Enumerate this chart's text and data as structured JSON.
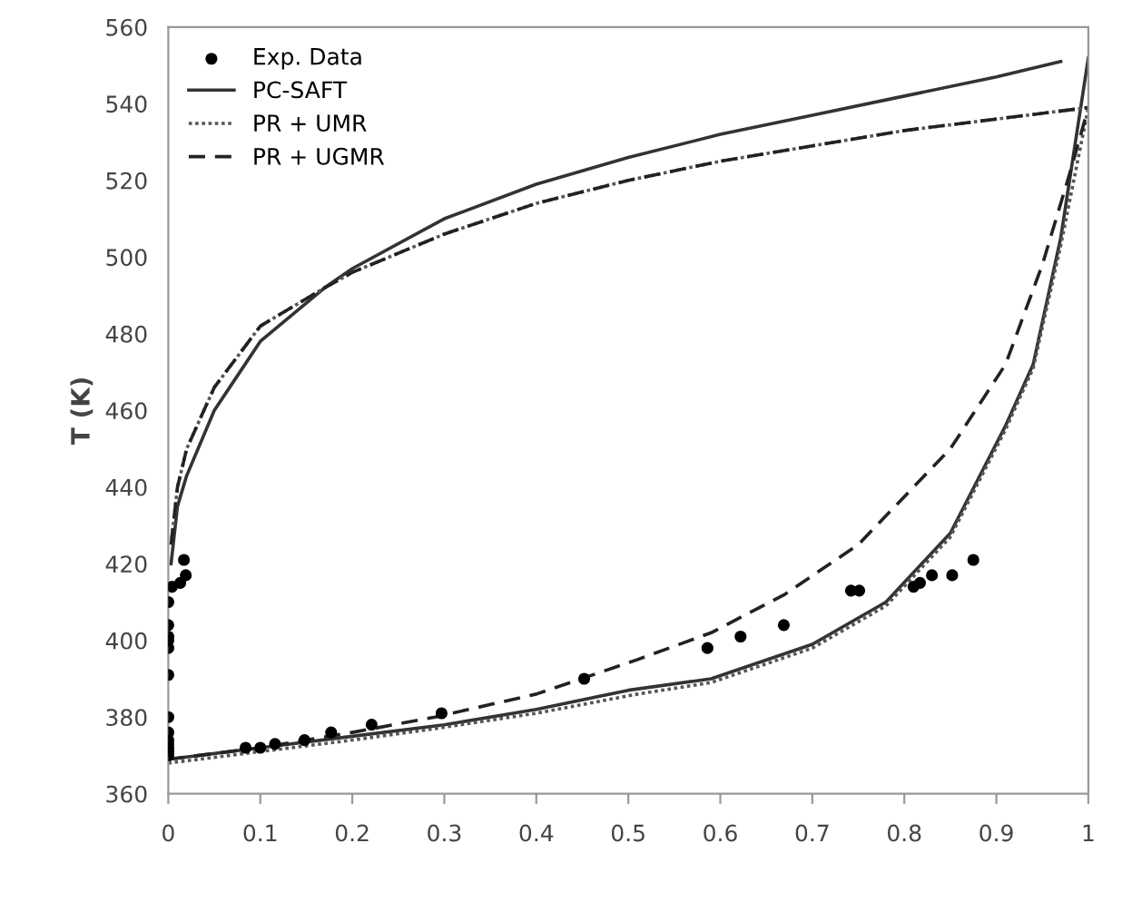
{
  "chart_data": {
    "type": "line",
    "ylabel": "T (K)",
    "xlim": [
      0,
      1
    ],
    "ylim": [
      360,
      560
    ],
    "xticks": [
      0,
      0.1,
      0.2,
      0.3,
      0.4,
      0.5,
      0.6,
      0.7,
      0.8,
      0.9,
      1
    ],
    "yticks": [
      360,
      380,
      400,
      420,
      440,
      460,
      480,
      500,
      520,
      540,
      560
    ],
    "grid": false,
    "legend": "top left",
    "series": [
      {
        "name": "Exp. Data",
        "type": "scatter",
        "marker": "circle",
        "color": "#000000",
        "x": [
          0,
          0,
          0,
          0,
          0,
          0,
          0,
          0,
          0,
          0,
          0,
          0,
          0,
          0.004,
          0.013,
          0.019,
          0.017,
          0.084,
          0.1,
          0.116,
          0.148,
          0.177,
          0.221,
          0.297,
          0.452,
          0.586,
          0.622,
          0.669,
          0.742,
          0.751,
          0.81,
          0.817,
          0.83,
          0.852,
          0.875
        ],
        "values": [
          370,
          371,
          372,
          373,
          374,
          376,
          380,
          391,
          398,
          400,
          401,
          404,
          410,
          414,
          415,
          417,
          421,
          372,
          372,
          373,
          374,
          376,
          378,
          381,
          390,
          398,
          401,
          404,
          413,
          413,
          414,
          415,
          417,
          417,
          421
        ]
      },
      {
        "name": "PC-SAFT",
        "line_style": "solid",
        "color": "#333333",
        "x": [
          0.003,
          0.01,
          0.02,
          0.05,
          0.1,
          0.17,
          0.2,
          0.3,
          0.4,
          0.5,
          0.6,
          0.7,
          0.8,
          0.9,
          0.97,
          null,
          0,
          0.1,
          0.2,
          0.3,
          0.4,
          0.5,
          0.59,
          0.7,
          0.78,
          0.85,
          0.91,
          0.94,
          0.97,
          1
        ],
        "values": [
          420,
          435,
          443,
          460,
          478,
          492,
          497,
          510,
          519,
          526,
          532,
          537,
          542,
          547,
          551,
          null,
          369,
          372,
          375,
          378,
          382,
          387,
          390,
          399,
          410,
          428,
          456,
          472,
          505,
          552
        ]
      },
      {
        "name": "PR + UMR",
        "line_style": "dotted",
        "color": "#555555",
        "x": [
          0.003,
          0.01,
          0.02,
          0.05,
          0.1,
          0.17,
          0.2,
          0.3,
          0.4,
          0.5,
          0.6,
          0.7,
          0.8,
          0.9,
          1,
          null,
          0,
          0.1,
          0.2,
          0.29,
          0.4,
          0.51,
          0.59,
          0.7,
          0.78,
          0.85,
          0.91,
          0.94,
          0.97,
          1
        ],
        "values": [
          425,
          440,
          450,
          466,
          482,
          492,
          496,
          506,
          514,
          520,
          525,
          529,
          533,
          536,
          539,
          null,
          368,
          371,
          374,
          377,
          381,
          386,
          389,
          398,
          409,
          427,
          455,
          471,
          503,
          539
        ]
      },
      {
        "name": "PR + UGMR",
        "line_style": "dashed",
        "color": "#222222",
        "x": [
          0.003,
          0.01,
          0.02,
          0.05,
          0.1,
          0.17,
          0.2,
          0.3,
          0.4,
          0.5,
          0.6,
          0.7,
          0.8,
          0.9,
          1,
          null,
          0,
          0.1,
          0.2,
          0.29,
          0.4,
          0.51,
          0.59,
          0.67,
          0.75,
          0.85,
          0.91,
          0.95,
          0.98,
          1
        ],
        "values": [
          425,
          440,
          450,
          466,
          482,
          492,
          496,
          506,
          514,
          520,
          525,
          529,
          533,
          536,
          539,
          null,
          369,
          372,
          376,
          380,
          386,
          395,
          402,
          412,
          425,
          450,
          472,
          498,
          522,
          539
        ]
      }
    ]
  }
}
